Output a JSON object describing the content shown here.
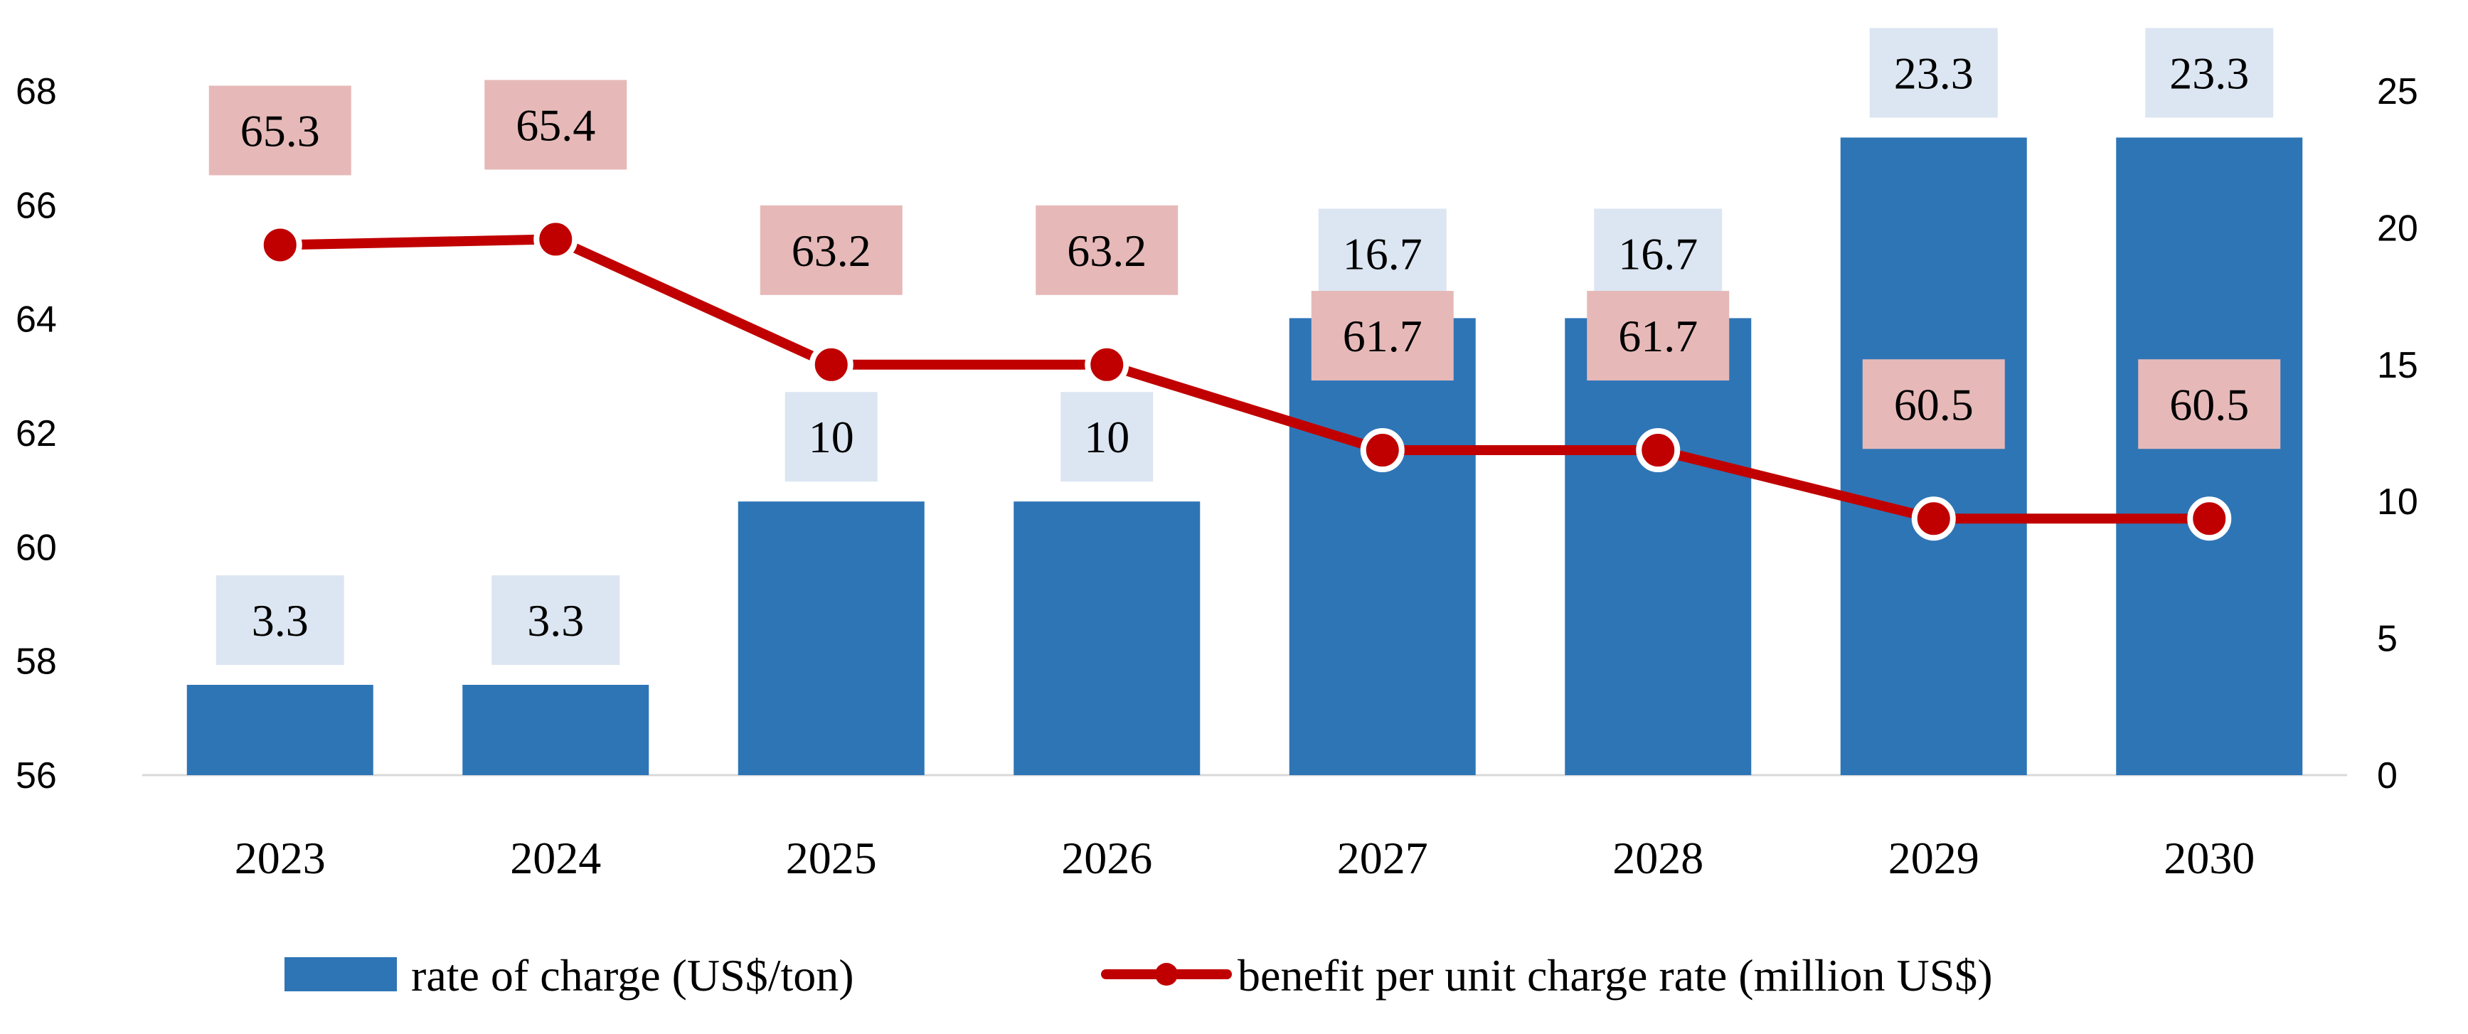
{
  "chart_data": {
    "type": "bar+line",
    "title": "",
    "categories": [
      "2023",
      "2024",
      "2025",
      "2026",
      "2027",
      "2028",
      "2029",
      "2030"
    ],
    "series": [
      {
        "name": "rate of charge (US$/ton)",
        "type": "bar",
        "axis": "right",
        "color": "#2E75B6",
        "label_bg": "#DCE6F2",
        "values": [
          3.3,
          3.3,
          10,
          10,
          16.7,
          16.7,
          23.3,
          23.3
        ],
        "labels": [
          "3.3",
          "3.3",
          "10",
          "10",
          "16.7",
          "16.7",
          "23.3",
          "23.3"
        ]
      },
      {
        "name": "benefit per unit charge rate (million US$)",
        "type": "line",
        "axis": "left",
        "color": "#C00000",
        "label_bg": "#E6B9B8",
        "values": [
          65.3,
          65.4,
          63.2,
          63.2,
          61.7,
          61.7,
          60.5,
          60.5
        ],
        "labels": [
          "65.3",
          "65.4",
          "63.2",
          "63.2",
          "61.7",
          "61.7",
          "60.5",
          "60.5"
        ]
      }
    ],
    "y_left": {
      "min": 56,
      "max": 68,
      "ticks": [
        "56",
        "58",
        "60",
        "62",
        "64",
        "66",
        "68"
      ]
    },
    "y_right": {
      "min": 0,
      "max": 25,
      "ticks": [
        "0",
        "5",
        "10",
        "15",
        "20",
        "25"
      ]
    },
    "legend_position": "bottom",
    "grid": false
  }
}
